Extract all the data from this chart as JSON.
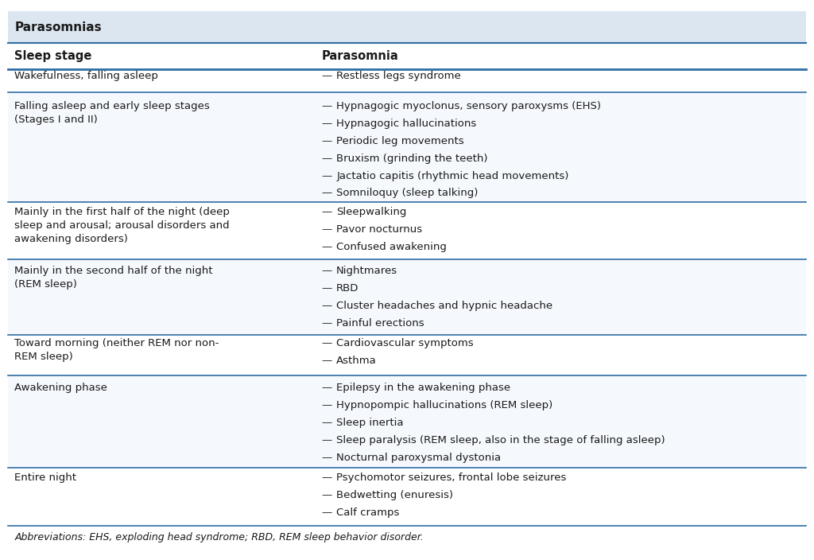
{
  "title": "Parasomnias",
  "title_bg": "#dce6f1",
  "header_bg": "#ffffff",
  "col1_header": "Sleep stage",
  "col2_header": "Parasomnia",
  "rows": [
    {
      "stage": "Wakefulness, falling asleep",
      "parasomnia": [
        "Restless legs syndrome"
      ],
      "bg": "#ffffff"
    },
    {
      "stage": "Falling asleep and early sleep stages\n(Stages I and II)",
      "parasomnia": [
        "Hypnagogic myoclonus, sensory paroxysms (EHS)",
        "Hypnagogic hallucinations",
        "Periodic leg movements",
        "Bruxism (grinding the teeth)",
        "Jactatio capitis (rhythmic head movements)",
        "Somniloquy (sleep talking)"
      ],
      "bg": "#f5f8fc"
    },
    {
      "stage": "Mainly in the first half of the night (deep\nsleep and arousal; arousal disorders and\nawakening disorders)",
      "parasomnia": [
        "Sleepwalking",
        "Pavor nocturnus",
        "Confused awakening"
      ],
      "bg": "#ffffff"
    },
    {
      "stage": "Mainly in the second half of the night\n(REM sleep)",
      "parasomnia": [
        "Nightmares",
        "RBD",
        "Cluster headaches and hypnic headache",
        "Painful erections"
      ],
      "bg": "#f5f8fc"
    },
    {
      "stage": "Toward morning (neither REM nor non-\nREM sleep)",
      "parasomnia": [
        "Cardiovascular symptoms",
        "Asthma"
      ],
      "bg": "#ffffff"
    },
    {
      "stage": "Awakening phase",
      "parasomnia": [
        "Epilepsy in the awakening phase",
        "Hypnopompic hallucinations (REM sleep)",
        "Sleep inertia",
        "Sleep paralysis (REM sleep, also in the stage of falling asleep)",
        "Nocturnal paroxysmal dystonia"
      ],
      "bg": "#f5f8fc"
    },
    {
      "stage": "Entire night",
      "parasomnia": [
        "Psychomotor seizures, frontal lobe seizures",
        "Bedwetting (enuresis)",
        "Calf cramps"
      ],
      "bg": "#ffffff"
    }
  ],
  "footnote": "Abbreviations: EHS, exploding head syndrome; RBD, REM sleep behavior disorder.",
  "line_color": "#2e6da4",
  "text_color": "#1a1a1a",
  "dash_color": "#333333",
  "col_split": 0.385,
  "font_size": 9.5,
  "header_font_size": 10.5,
  "title_font_size": 11
}
